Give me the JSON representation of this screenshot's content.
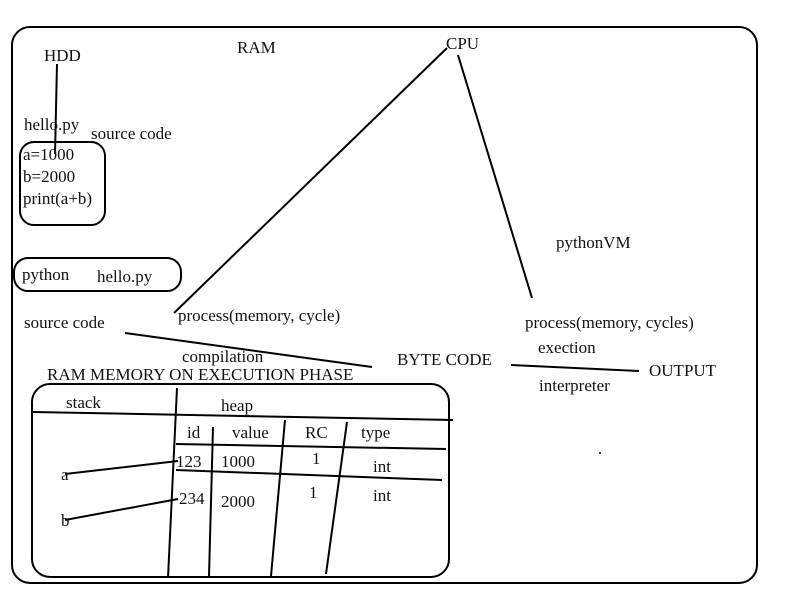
{
  "labels": {
    "hdd": "HDD",
    "ram": "RAM",
    "cpu": "CPU",
    "file_name": "hello.py",
    "source_code_top": "source  code",
    "code_lines": [
      "a=1000",
      "b=2000",
      "print(a+b)"
    ],
    "cmd_python": "python",
    "cmd_file": "hello.py",
    "source_code_mid": "source  code",
    "process_left": "process(memory,  cycle)",
    "python_vm": "pythonVM",
    "process_right": "process(memory,  cycles)",
    "exection": "exection",
    "compilation": "compilation",
    "byte_code": "BYTE  CODE",
    "interpreter": "interpreter",
    "output": "OUTPUT",
    "ram_memory_phase": "RAM  MEMORY  ON  EXECUTION  PHASE",
    "stack": "stack",
    "heap": "heap"
  },
  "heap_table": {
    "headers": [
      "id",
      "value",
      "RC",
      "type"
    ],
    "rows": [
      {
        "id": "123",
        "value": "1000",
        "rc": "1",
        "type": "int"
      },
      {
        "id": "234",
        "value": "2000",
        "rc": "1",
        "type": "int"
      }
    ]
  },
  "stack_vars": [
    "a",
    "b"
  ]
}
